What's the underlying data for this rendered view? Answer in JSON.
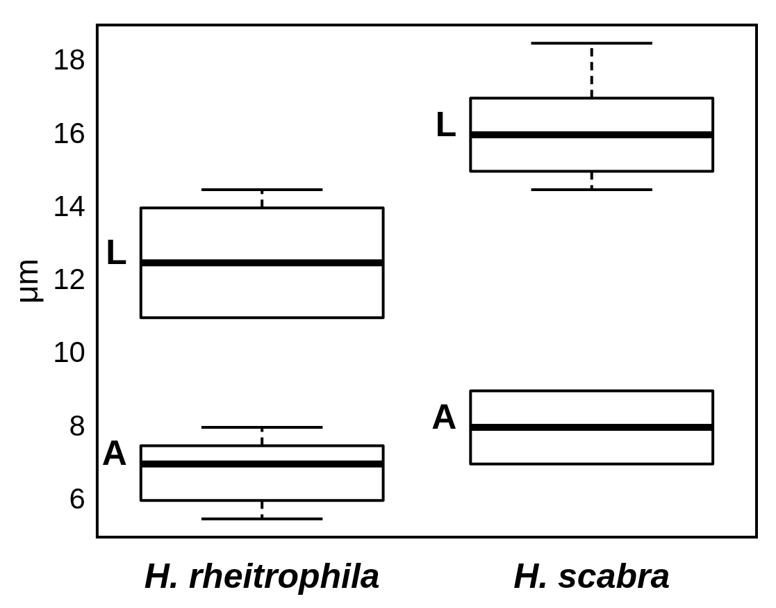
{
  "chart_data": {
    "type": "box",
    "ylabel": "μm",
    "categories": [
      "H. rheitrophila",
      "H. scabra"
    ],
    "ylim": [
      5,
      19
    ],
    "yticks": [
      6,
      8,
      10,
      12,
      14,
      16,
      18
    ],
    "series": [
      {
        "name": "L",
        "color": "#000000",
        "boxes": [
          {
            "low": 11,
            "q1": 11,
            "median": 12.5,
            "q3": 14,
            "high": 14.5
          },
          {
            "low": 14.5,
            "q1": 15,
            "median": 16,
            "q3": 17,
            "high": 18.5
          }
        ]
      },
      {
        "name": "A",
        "color": "#000000",
        "boxes": [
          {
            "low": 5.5,
            "q1": 6,
            "median": 7,
            "q3": 7.5,
            "high": 8
          },
          {
            "low": 7,
            "q1": 7,
            "median": 8,
            "q3": 9,
            "high": 9
          }
        ]
      }
    ]
  }
}
